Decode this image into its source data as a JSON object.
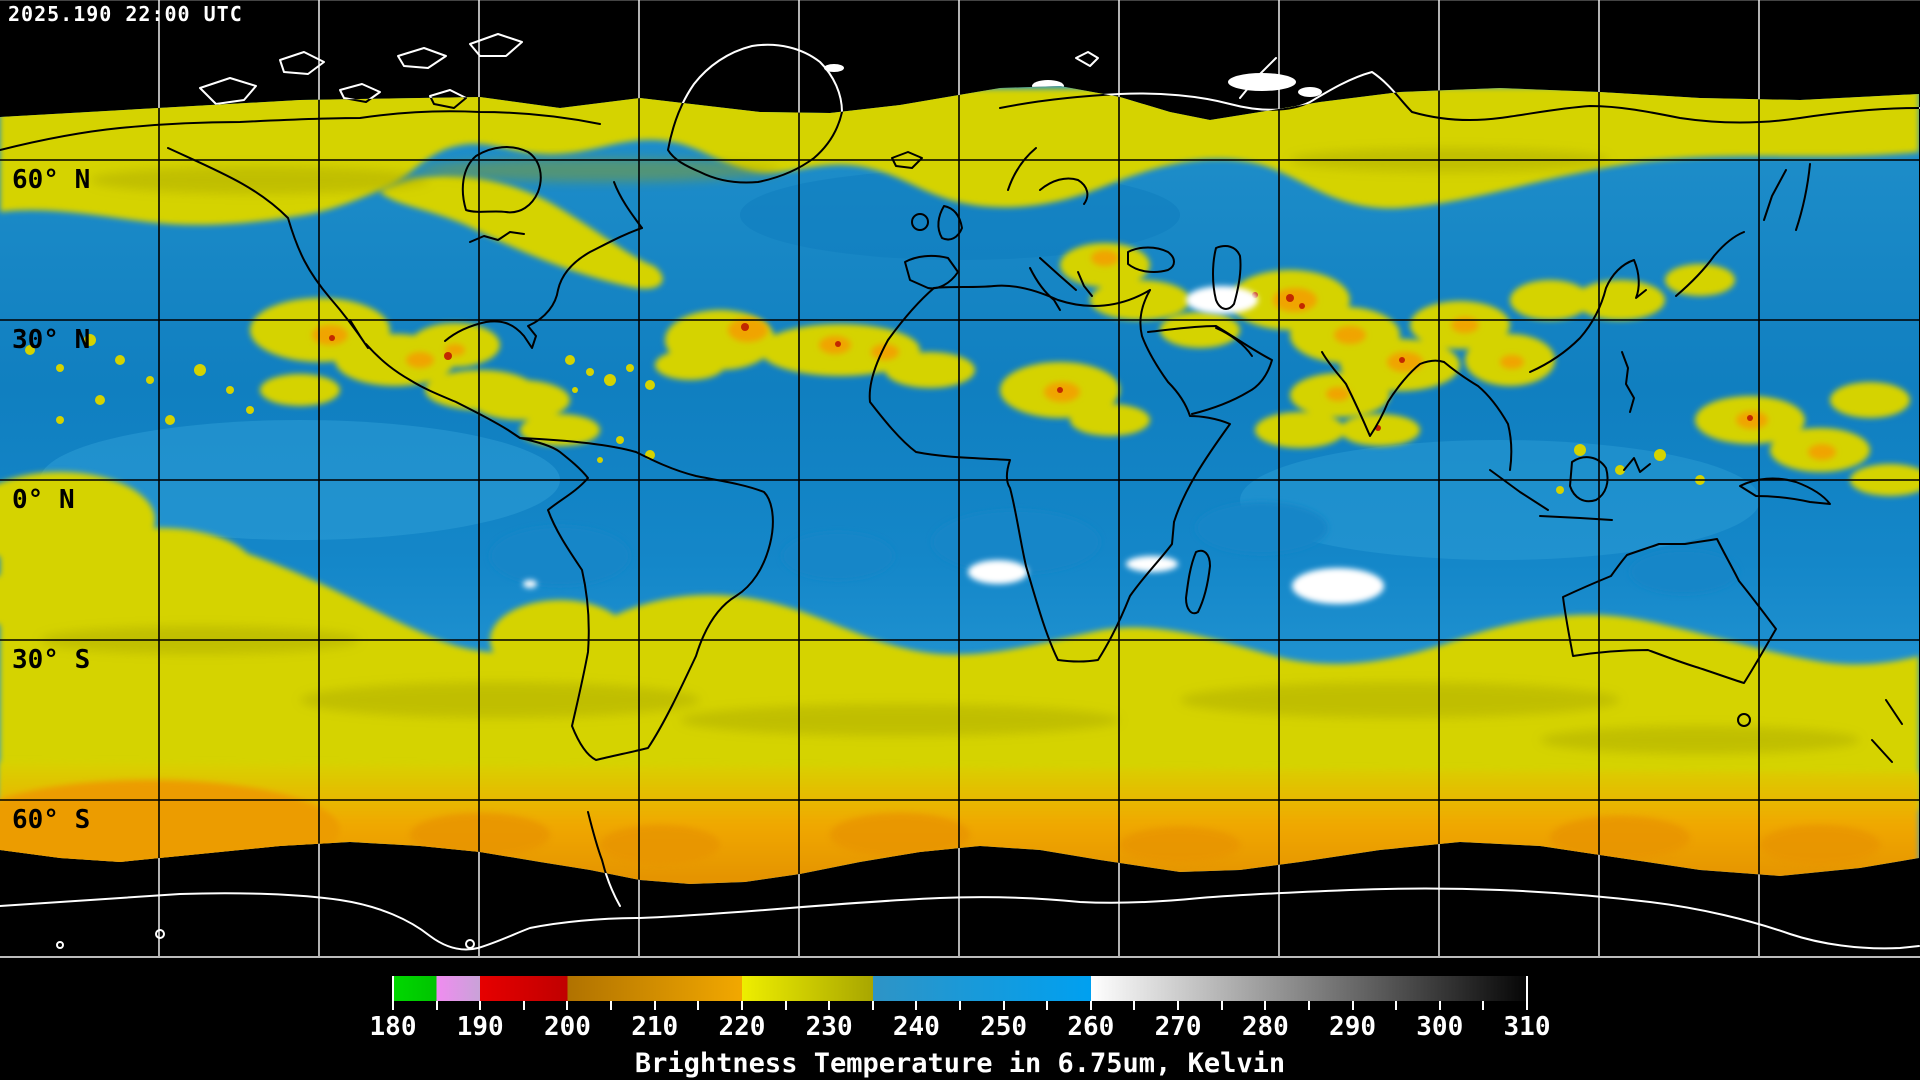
{
  "header": {
    "timestamp": "2025.190 22:00 UTC"
  },
  "map": {
    "latitude_labels": [
      "60° N",
      "30° N",
      "0° N",
      "30° S",
      "60° S"
    ],
    "graticule": {
      "lat_lines_deg": [
        60,
        30,
        0,
        -30,
        -60
      ],
      "lon_spacing_deg": 30
    }
  },
  "colorbar": {
    "title": "Brightness Temperature in 6.75um, Kelvin",
    "min": 180,
    "max": 310,
    "minor_tick_step": 5,
    "major_ticks": [
      180,
      190,
      200,
      210,
      220,
      230,
      240,
      250,
      260,
      270,
      280,
      290,
      300,
      310
    ],
    "segments": [
      {
        "from": 180,
        "to": 185,
        "start": "#00d800",
        "end": "#00c400"
      },
      {
        "from": 185,
        "to": 190,
        "start": "#f08cf0",
        "end": "#c9a2d8"
      },
      {
        "from": 190,
        "to": 200,
        "start": "#e60000",
        "end": "#c00000"
      },
      {
        "from": 200,
        "to": 220,
        "start": "#b07200",
        "end": "#f2a800"
      },
      {
        "from": 220,
        "to": 235,
        "start": "#eeee00",
        "end": "#a8a600"
      },
      {
        "from": 235,
        "to": 260,
        "start": "#2e94c6",
        "end": "#00a0f0"
      },
      {
        "from": 260,
        "to": 310,
        "start": "#ffffff",
        "end": "#060606"
      }
    ]
  },
  "palette": {
    "space": "#000000",
    "ocean": "#1385c6",
    "cloud_yellow": "#d5d300",
    "cloud_orange": "#f0a400",
    "cloud_red": "#c22800",
    "polar_orange": "#ec9c00",
    "cloud_white": "#ffffff",
    "coast_on_data": "#000000",
    "coast_on_space": "#ffffff",
    "grid_on_data": "#000000",
    "grid_on_space": "#ffffff",
    "text_light": "#ffffff",
    "text_dark": "#000000"
  }
}
